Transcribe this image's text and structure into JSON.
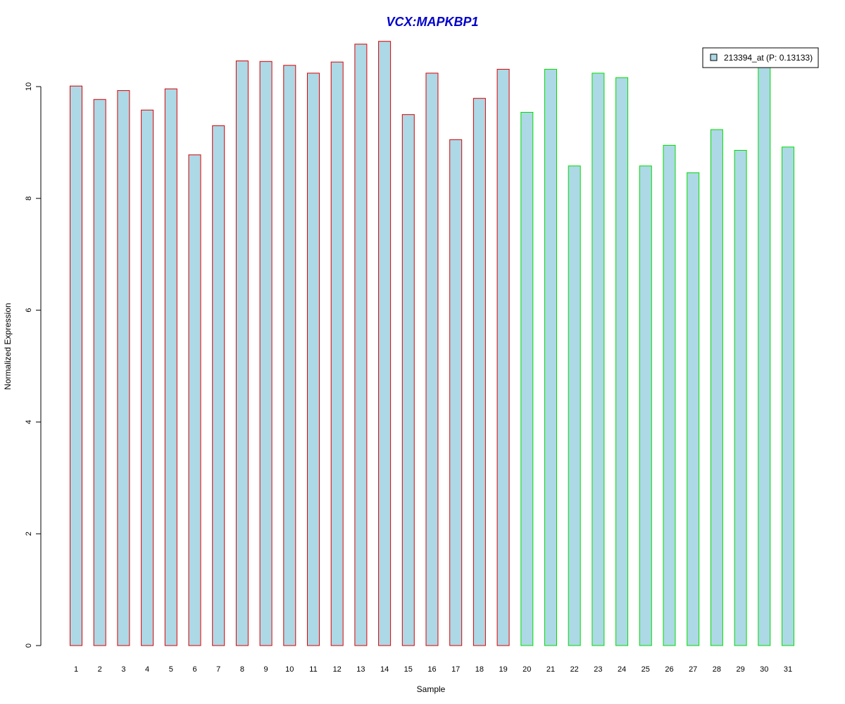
{
  "chart_data": {
    "type": "bar",
    "title": "VCX:MAPKBP1",
    "xlabel": "Sample",
    "ylabel": "Normalized Expression",
    "categories": [
      "1",
      "2",
      "3",
      "4",
      "5",
      "6",
      "7",
      "8",
      "9",
      "10",
      "11",
      "12",
      "13",
      "14",
      "15",
      "16",
      "17",
      "18",
      "19",
      "20",
      "21",
      "22",
      "23",
      "24",
      "25",
      "26",
      "27",
      "28",
      "29",
      "30",
      "31"
    ],
    "series": [
      {
        "name": "213394_at (P: 0.13133)",
        "values": [
          10.01,
          9.77,
          9.93,
          9.58,
          9.96,
          8.78,
          9.3,
          10.46,
          10.45,
          10.38,
          10.24,
          10.44,
          10.76,
          10.81,
          9.5,
          10.24,
          9.05,
          9.79,
          10.31,
          9.54,
          10.31,
          8.58,
          10.24,
          10.16,
          8.58,
          8.95,
          8.46,
          9.23,
          8.86,
          10.37,
          8.92
        ]
      }
    ],
    "groups": [
      1,
      1,
      1,
      1,
      1,
      1,
      1,
      1,
      1,
      1,
      1,
      1,
      1,
      1,
      1,
      1,
      1,
      1,
      1,
      2,
      2,
      2,
      2,
      2,
      2,
      2,
      2,
      2,
      2,
      2,
      2
    ],
    "y_ticks": [
      0,
      2,
      4,
      6,
      8,
      10
    ],
    "ylim": [
      0,
      10.9
    ],
    "grid": false,
    "legend_position": "top-right",
    "colors": {
      "title": "#0000cc",
      "bar_fill": "#add8e6",
      "group1_border": "#dd0000",
      "group2_border": "#00dd00",
      "axis": "#000000"
    }
  }
}
